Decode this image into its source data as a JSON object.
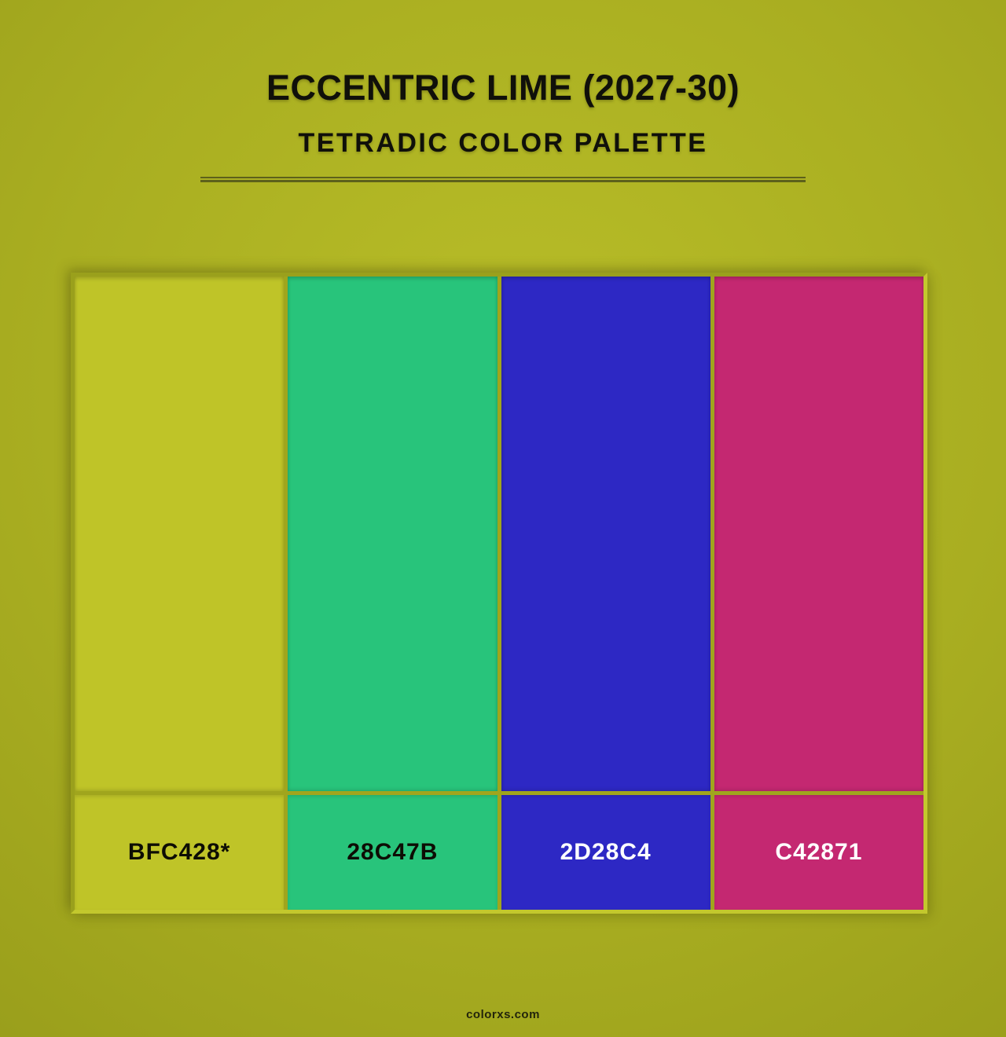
{
  "page": {
    "title": "ECCENTRIC LIME (2027-30)",
    "subtitle": "TETRADIC COLOR PALETTE",
    "footer_text": "colorxs.com"
  },
  "colors": {
    "bg-center": "#b9be28",
    "bg-mid": "#a9ae21",
    "bg-edge": "#999e1b",
    "rule": "#5d611b",
    "title-text": "#10100a",
    "footer-text": "#23250b",
    "palette-gap": "#a0a51d",
    "border-light": "#c3c82d",
    "border-dark": "#9aa01c"
  },
  "palette": {
    "swatches": [
      {
        "hex_label": "BFC428*",
        "color": "#BFC428",
        "label_text_color": "#0d0d04"
      },
      {
        "hex_label": "28C47B",
        "color": "#28C47B",
        "label_text_color": "#0d0d04"
      },
      {
        "hex_label": "2D28C4",
        "color": "#2D28C4",
        "label_text_color": "#ffffff"
      },
      {
        "hex_label": "C42871",
        "color": "#C42871",
        "label_text_color": "#ffffff"
      }
    ]
  }
}
